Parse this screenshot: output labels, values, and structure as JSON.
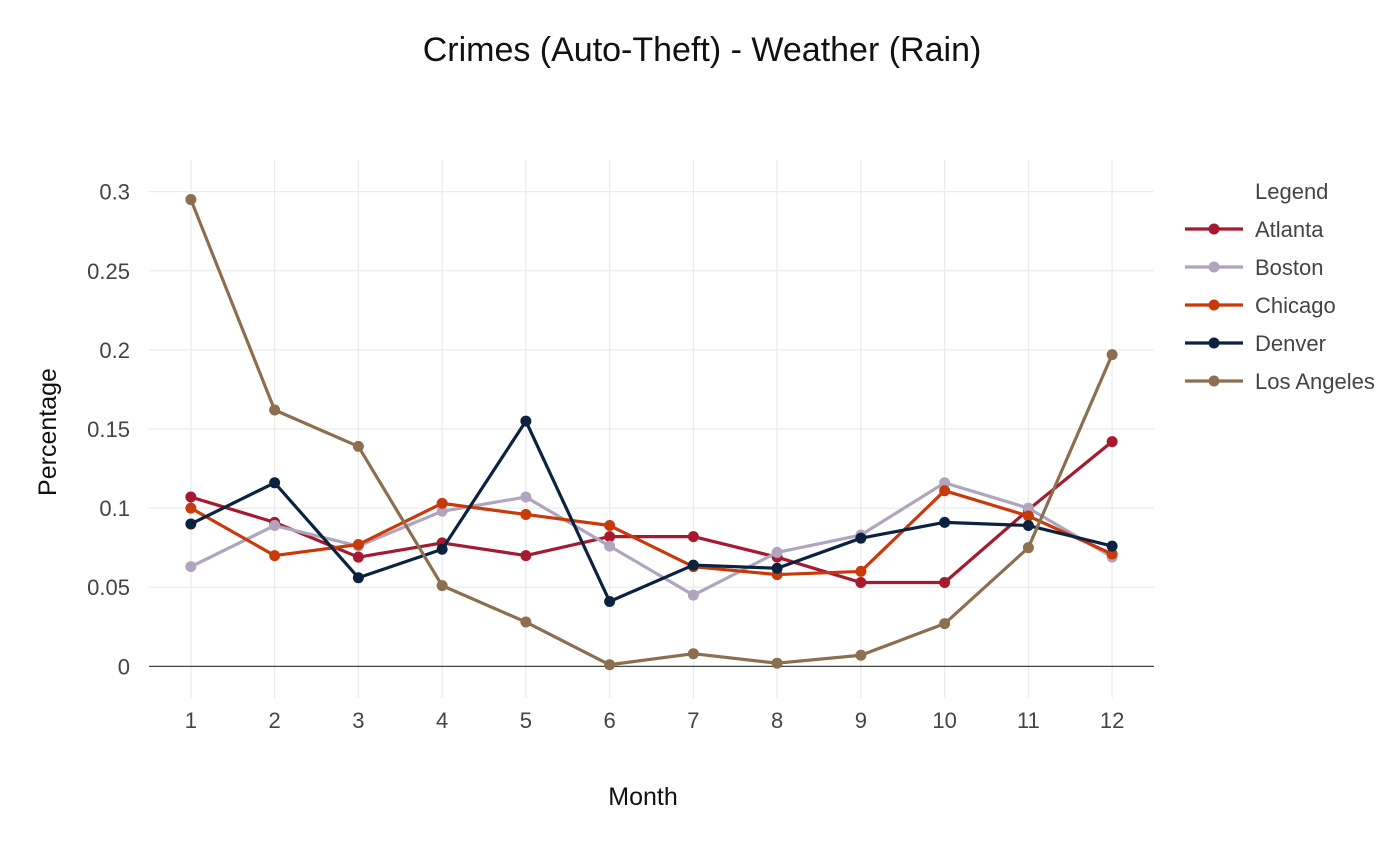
{
  "chart_data": {
    "type": "line",
    "title": "Crimes (Auto-Theft) - Weather (Rain)",
    "xlabel": "Month",
    "ylabel": "Percentage",
    "legend_title": "Legend",
    "legend_position": "right",
    "grid": true,
    "xlim": [
      0.5,
      12.5
    ],
    "ylim": [
      -0.02,
      0.32
    ],
    "x": [
      1,
      2,
      3,
      4,
      5,
      6,
      7,
      8,
      9,
      10,
      11,
      12
    ],
    "x_ticks": [
      "1",
      "2",
      "3",
      "4",
      "5",
      "6",
      "7",
      "8",
      "9",
      "10",
      "11",
      "12"
    ],
    "y_ticks": [
      0,
      0.05,
      0.1,
      0.15,
      0.2,
      0.25,
      0.3
    ],
    "y_tick_labels": [
      "0",
      "0.05",
      "0.1",
      "0.15",
      "0.2",
      "0.25",
      "0.3"
    ],
    "series": [
      {
        "name": "Atlanta",
        "color": "#a6192e",
        "values": [
          0.107,
          0.091,
          0.069,
          0.078,
          0.07,
          0.082,
          0.082,
          0.069,
          0.053,
          0.053,
          0.099,
          0.142
        ]
      },
      {
        "name": "Boston",
        "color": "#b0a4bf",
        "values": [
          0.063,
          0.089,
          0.076,
          0.098,
          0.107,
          0.076,
          0.045,
          0.072,
          0.083,
          0.116,
          0.1,
          0.069
        ]
      },
      {
        "name": "Chicago",
        "color": "#c93a0b",
        "values": [
          0.1,
          0.07,
          0.077,
          0.103,
          0.096,
          0.089,
          0.063,
          0.058,
          0.06,
          0.111,
          0.095,
          0.071
        ]
      },
      {
        "name": "Denver",
        "color": "#0b2341",
        "values": [
          0.09,
          0.116,
          0.056,
          0.074,
          0.155,
          0.041,
          0.064,
          0.062,
          0.081,
          0.091,
          0.089,
          0.076
        ]
      },
      {
        "name": "Los Angeles",
        "color": "#8b6f4e",
        "values": [
          0.295,
          0.162,
          0.139,
          0.051,
          0.028,
          0.001,
          0.008,
          0.002,
          0.007,
          0.027,
          0.075,
          0.197
        ]
      }
    ]
  }
}
